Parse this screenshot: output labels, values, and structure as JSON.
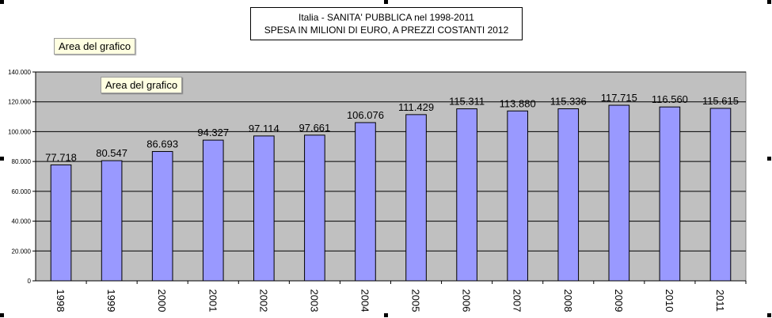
{
  "chart_data": {
    "type": "bar",
    "title": "Italia - SANITA' PUBBLICA nel 1998-2011",
    "subtitle": "SPESA IN MILIONI DI  EURO, A PREZZI COSTANTI 2012",
    "categories": [
      "1998",
      "1999",
      "2000",
      "2001",
      "2002",
      "2003",
      "2004",
      "2005",
      "2006",
      "2007",
      "2008",
      "2009",
      "2010",
      "2011"
    ],
    "values": [
      77718,
      80547,
      86693,
      94327,
      97114,
      97661,
      106076,
      111429,
      115311,
      113880,
      115336,
      117715,
      116560,
      115615
    ],
    "value_labels": [
      "77.718",
      "80.547",
      "86.693",
      "94.327",
      "97.114",
      "97.661",
      "106.076",
      "111.429",
      "115.311",
      "113.880",
      "115.336",
      "117.715",
      "116.560",
      "115.615"
    ],
    "y_ticks": [
      0,
      20000,
      40000,
      60000,
      80000,
      100000,
      120000,
      140000
    ],
    "y_tick_labels": [
      "0",
      "20.000",
      "40.000",
      "60.000",
      "80.000",
      "100.000",
      "120.000",
      "140.000"
    ],
    "ylim": [
      0,
      140000
    ],
    "xlabel": "",
    "ylabel": "",
    "grid": true,
    "colors": {
      "bar": "#9999ff",
      "plot_area": "#c0c0c0",
      "border": "#000000"
    }
  },
  "tooltips": {
    "chart_area": "Area del grafico",
    "plot_area": "Area del grafico"
  }
}
